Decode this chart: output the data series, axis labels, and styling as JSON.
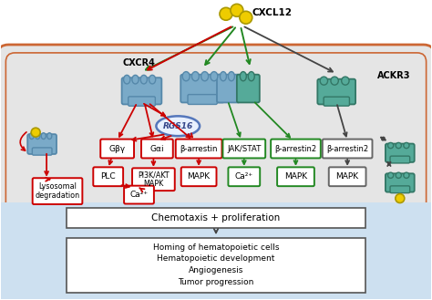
{
  "bg_white": "#ffffff",
  "bg_cell": "#e5e5e5",
  "bg_bottom": "#cde0f0",
  "cell_outline": "#cc6633",
  "red_color": "#cc0000",
  "green_color": "#228822",
  "dark_color": "#444444",
  "blue_receptor_fc": "#7aaac8",
  "blue_receptor_ec": "#5588aa",
  "teal_receptor_fc": "#55aa99",
  "teal_receptor_ec": "#337766",
  "yellow_ligand": "#eecc00",
  "yellow_ligand_ec": "#aa9900",
  "rgs_fill": "#e8f0ff",
  "rgs_outline": "#5577bb",
  "box_white": "#ffffff",
  "label_cxcl12": "CXCL12",
  "label_cxcr4": "CXCR4",
  "label_ackr3": "ACKR3",
  "label_rgs": "RGS16",
  "label_gpby": "Gβγ",
  "label_gai": "Gαi",
  "label_barr": "β-arrestin",
  "label_jakstat": "JAK/STAT",
  "label_barr2_green": "β-arrestin2",
  "label_barr2_gray": "β-arrestin2",
  "label_plc": "PLC",
  "label_pi3k": "PI3K/AKT\nMAPK",
  "label_mapk_r": "MAPK",
  "label_ca2_r": "Ca²⁺",
  "label_ca2_g": "Ca²⁺",
  "label_mapk_g": "MAPK",
  "label_mapk_k": "MAPK",
  "label_lyso": "Lysosomal\ndegradation",
  "label_chemotaxis": "Chemotaxis + proliferation",
  "label_homing": "Homing of hematopoietic cells",
  "label_hemato": "Hematopoietic development",
  "label_angio": "Angiogenesis",
  "label_tumor": "Tumor progression"
}
